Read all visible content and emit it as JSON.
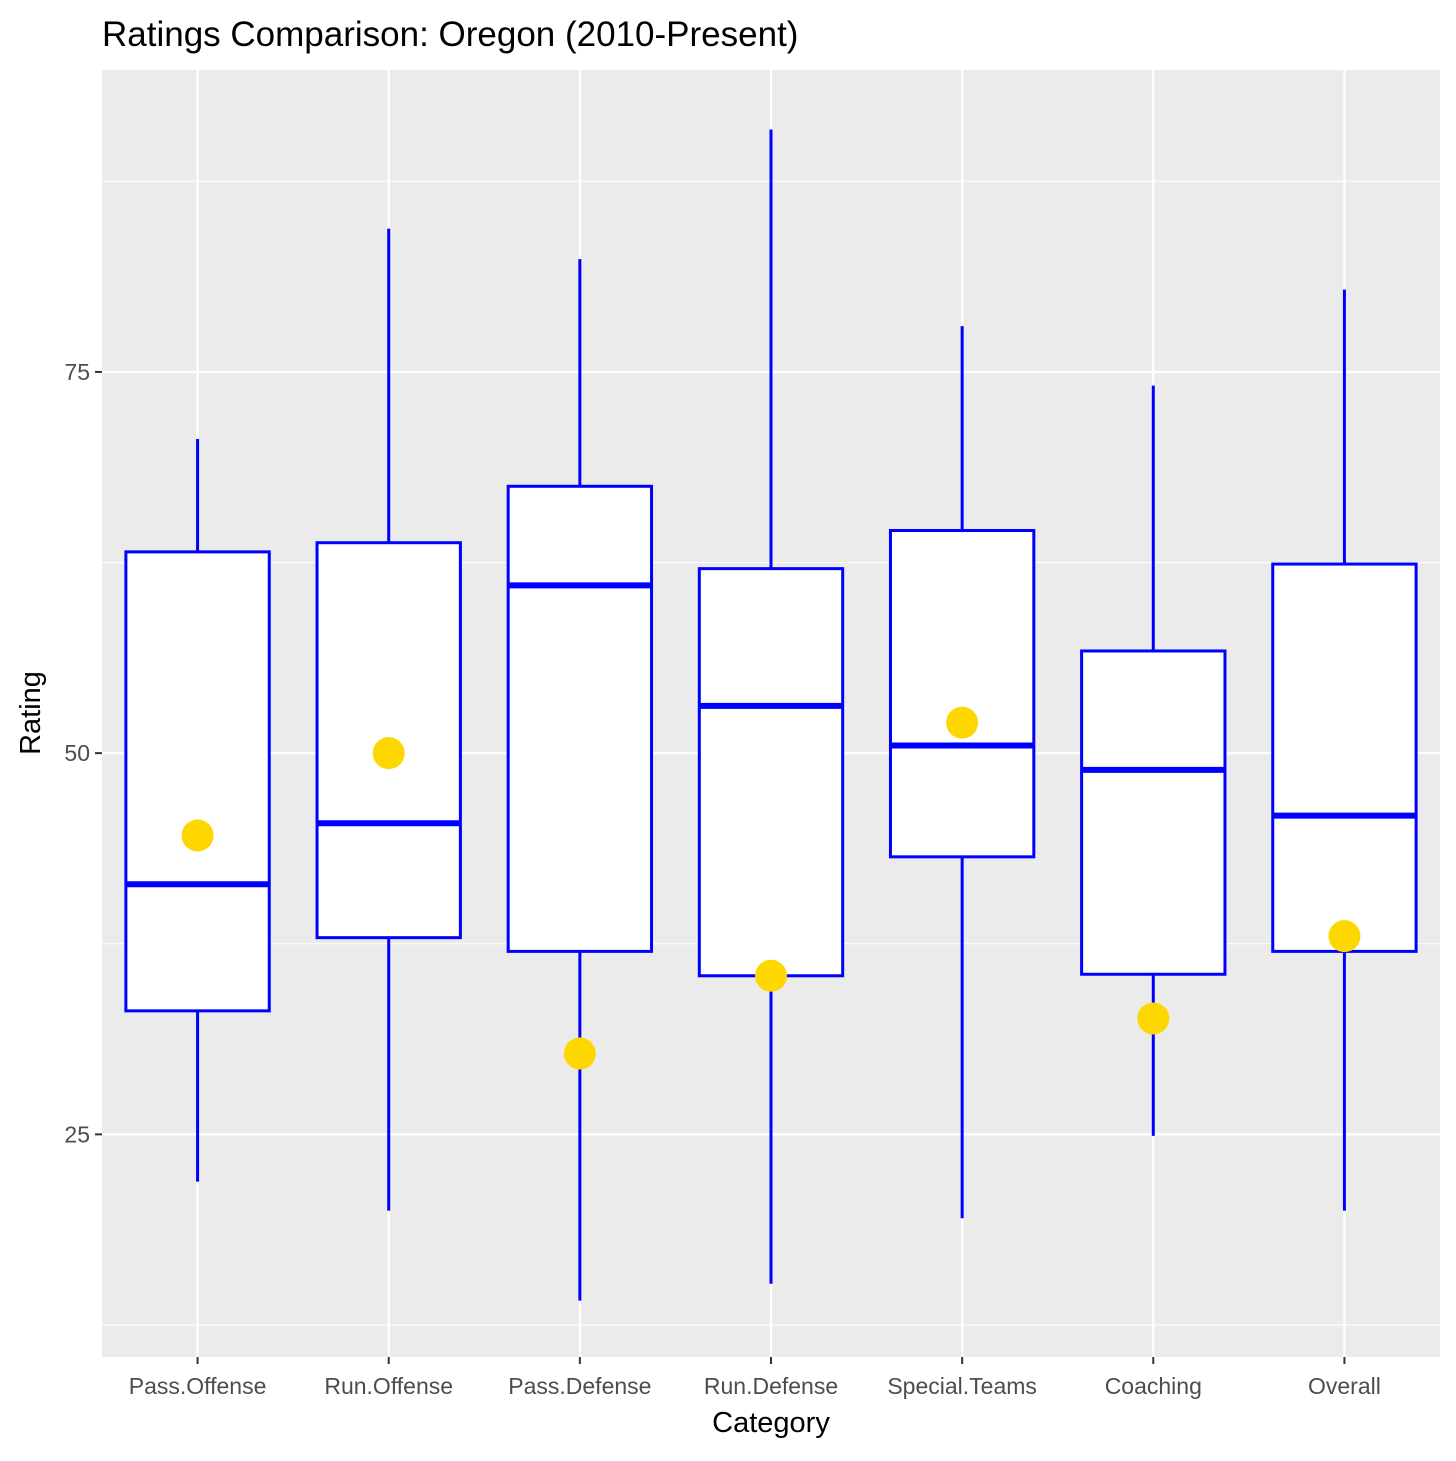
{
  "chart_data": {
    "type": "boxplot",
    "title": "Ratings Comparison: Oregon (2010-Present)",
    "xlabel": "Category",
    "ylabel": "Rating",
    "ylim": [
      10.4,
      94.8
    ],
    "yticks": [
      25,
      50,
      75
    ],
    "grid": true,
    "categories": [
      "Pass.Offense",
      "Run.Offense",
      "Pass.Defense",
      "Run.Defense",
      "Special.Teams",
      "Coaching",
      "Overall"
    ],
    "boxes": [
      {
        "whisker_low": 21.9,
        "q1": 33.1,
        "median": 41.4,
        "q3": 63.2,
        "whisker_high": 70.6,
        "point": 44.6
      },
      {
        "whisker_low": 20.0,
        "q1": 37.9,
        "median": 45.4,
        "q3": 63.8,
        "whisker_high": 84.4,
        "point": 50.0
      },
      {
        "whisker_low": 14.1,
        "q1": 37.0,
        "median": 61.0,
        "q3": 67.5,
        "whisker_high": 82.4,
        "point": 30.3
      },
      {
        "whisker_low": 15.2,
        "q1": 35.4,
        "median": 53.1,
        "q3": 62.1,
        "whisker_high": 90.9,
        "point": 35.4
      },
      {
        "whisker_low": 19.5,
        "q1": 43.2,
        "median": 50.5,
        "q3": 64.6,
        "whisker_high": 78.0,
        "point": 52.0
      },
      {
        "whisker_low": 24.9,
        "q1": 35.5,
        "median": 48.9,
        "q3": 56.7,
        "whisker_high": 74.1,
        "point": 32.6
      },
      {
        "whisker_low": 20.0,
        "q1": 37.0,
        "median": 45.9,
        "q3": 62.4,
        "whisker_high": 80.4,
        "point": 38.0
      }
    ],
    "colors": {
      "box": "#0000FF",
      "point": "#FFD700",
      "panel": "#EBEBEB"
    }
  }
}
